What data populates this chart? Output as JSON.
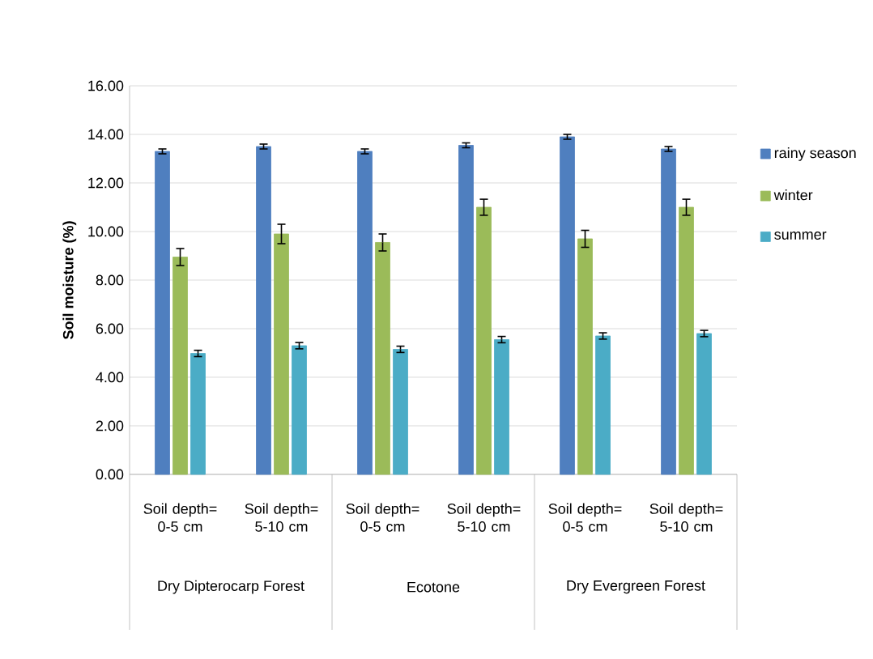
{
  "chart_data": {
    "type": "bar",
    "ylabel": "Soil moisture (%)",
    "categories": [
      "Soil depth= 0-5 cm",
      "Soil depth= 5-10 cm",
      "Soil depth= 0-5 cm",
      "Soil depth= 5-10 cm",
      "Soil depth= 0-5 cm",
      "Soil depth= 5-10 cm"
    ],
    "annotations": [
      "Dry Dipterocarp Forest",
      "Ecotone",
      "Dry Evergreen Forest"
    ],
    "series": [
      {
        "name": "rainy season",
        "color": "#4f7fbf",
        "values": [
          13.3,
          13.5,
          13.3,
          13.55,
          13.9,
          13.4
        ],
        "errors": [
          0.1,
          0.1,
          0.1,
          0.1,
          0.1,
          0.1
        ]
      },
      {
        "name": "winter",
        "color": "#9bbb59",
        "values": [
          8.95,
          9.9,
          9.55,
          11.0,
          9.7,
          11.0
        ],
        "errors": [
          0.35,
          0.4,
          0.35,
          0.33,
          0.35,
          0.33
        ]
      },
      {
        "name": "summer",
        "color": "#4bacc6",
        "values": [
          4.98,
          5.3,
          5.15,
          5.55,
          5.7,
          5.8
        ],
        "errors": [
          0.13,
          0.13,
          0.13,
          0.13,
          0.13,
          0.13
        ]
      }
    ],
    "ylim": [
      0,
      16
    ],
    "yticks": [
      {
        "value": 0,
        "label": "0.00"
      },
      {
        "value": 2,
        "label": "2.00"
      },
      {
        "value": 4,
        "label": "4.00"
      },
      {
        "value": 6,
        "label": "6.00"
      },
      {
        "value": 8,
        "label": "8.00"
      },
      {
        "value": 10,
        "label": "10.00"
      },
      {
        "value": 12,
        "label": "12.00"
      },
      {
        "value": 14,
        "label": "14.00"
      },
      {
        "value": 16,
        "label": "16.00"
      }
    ],
    "grid": "y",
    "legend": "right"
  }
}
